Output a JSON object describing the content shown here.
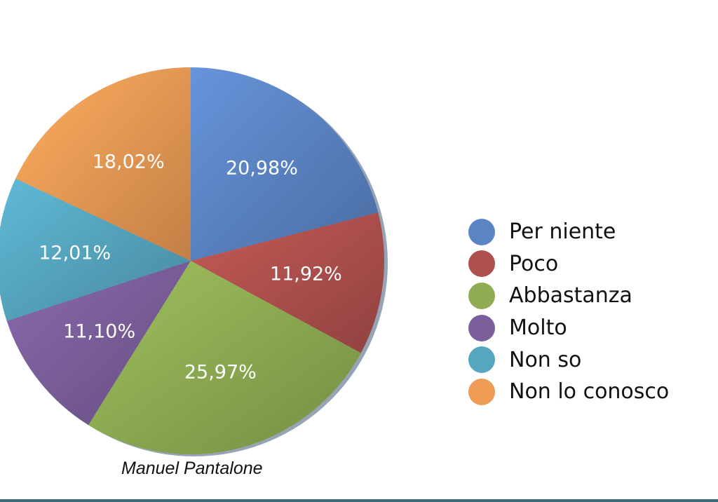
{
  "chart_data": {
    "type": "pie",
    "title": "",
    "start_angle": "top, clockwise",
    "legend_position": "right",
    "slices": [
      {
        "name": "Per niente",
        "value": 20.98,
        "label": "20,98%",
        "color": "#5b84c4"
      },
      {
        "name": "Poco",
        "value": 11.92,
        "label": "11,92%",
        "color": "#b0504e"
      },
      {
        "name": "Abbastanza",
        "value": 25.97,
        "label": "25,97%",
        "color": "#8fac53"
      },
      {
        "name": "Molto",
        "value": 11.1,
        "label": "11,10%",
        "color": "#7b5f9b"
      },
      {
        "name": "Non so",
        "value": 12.01,
        "label": "12,01%",
        "color": "#56a6c0"
      },
      {
        "name": "Non lo conosco",
        "value": 18.02,
        "label": "18,02%",
        "color": "#ee9b55"
      }
    ]
  },
  "caption": "Manuel Pantalone"
}
